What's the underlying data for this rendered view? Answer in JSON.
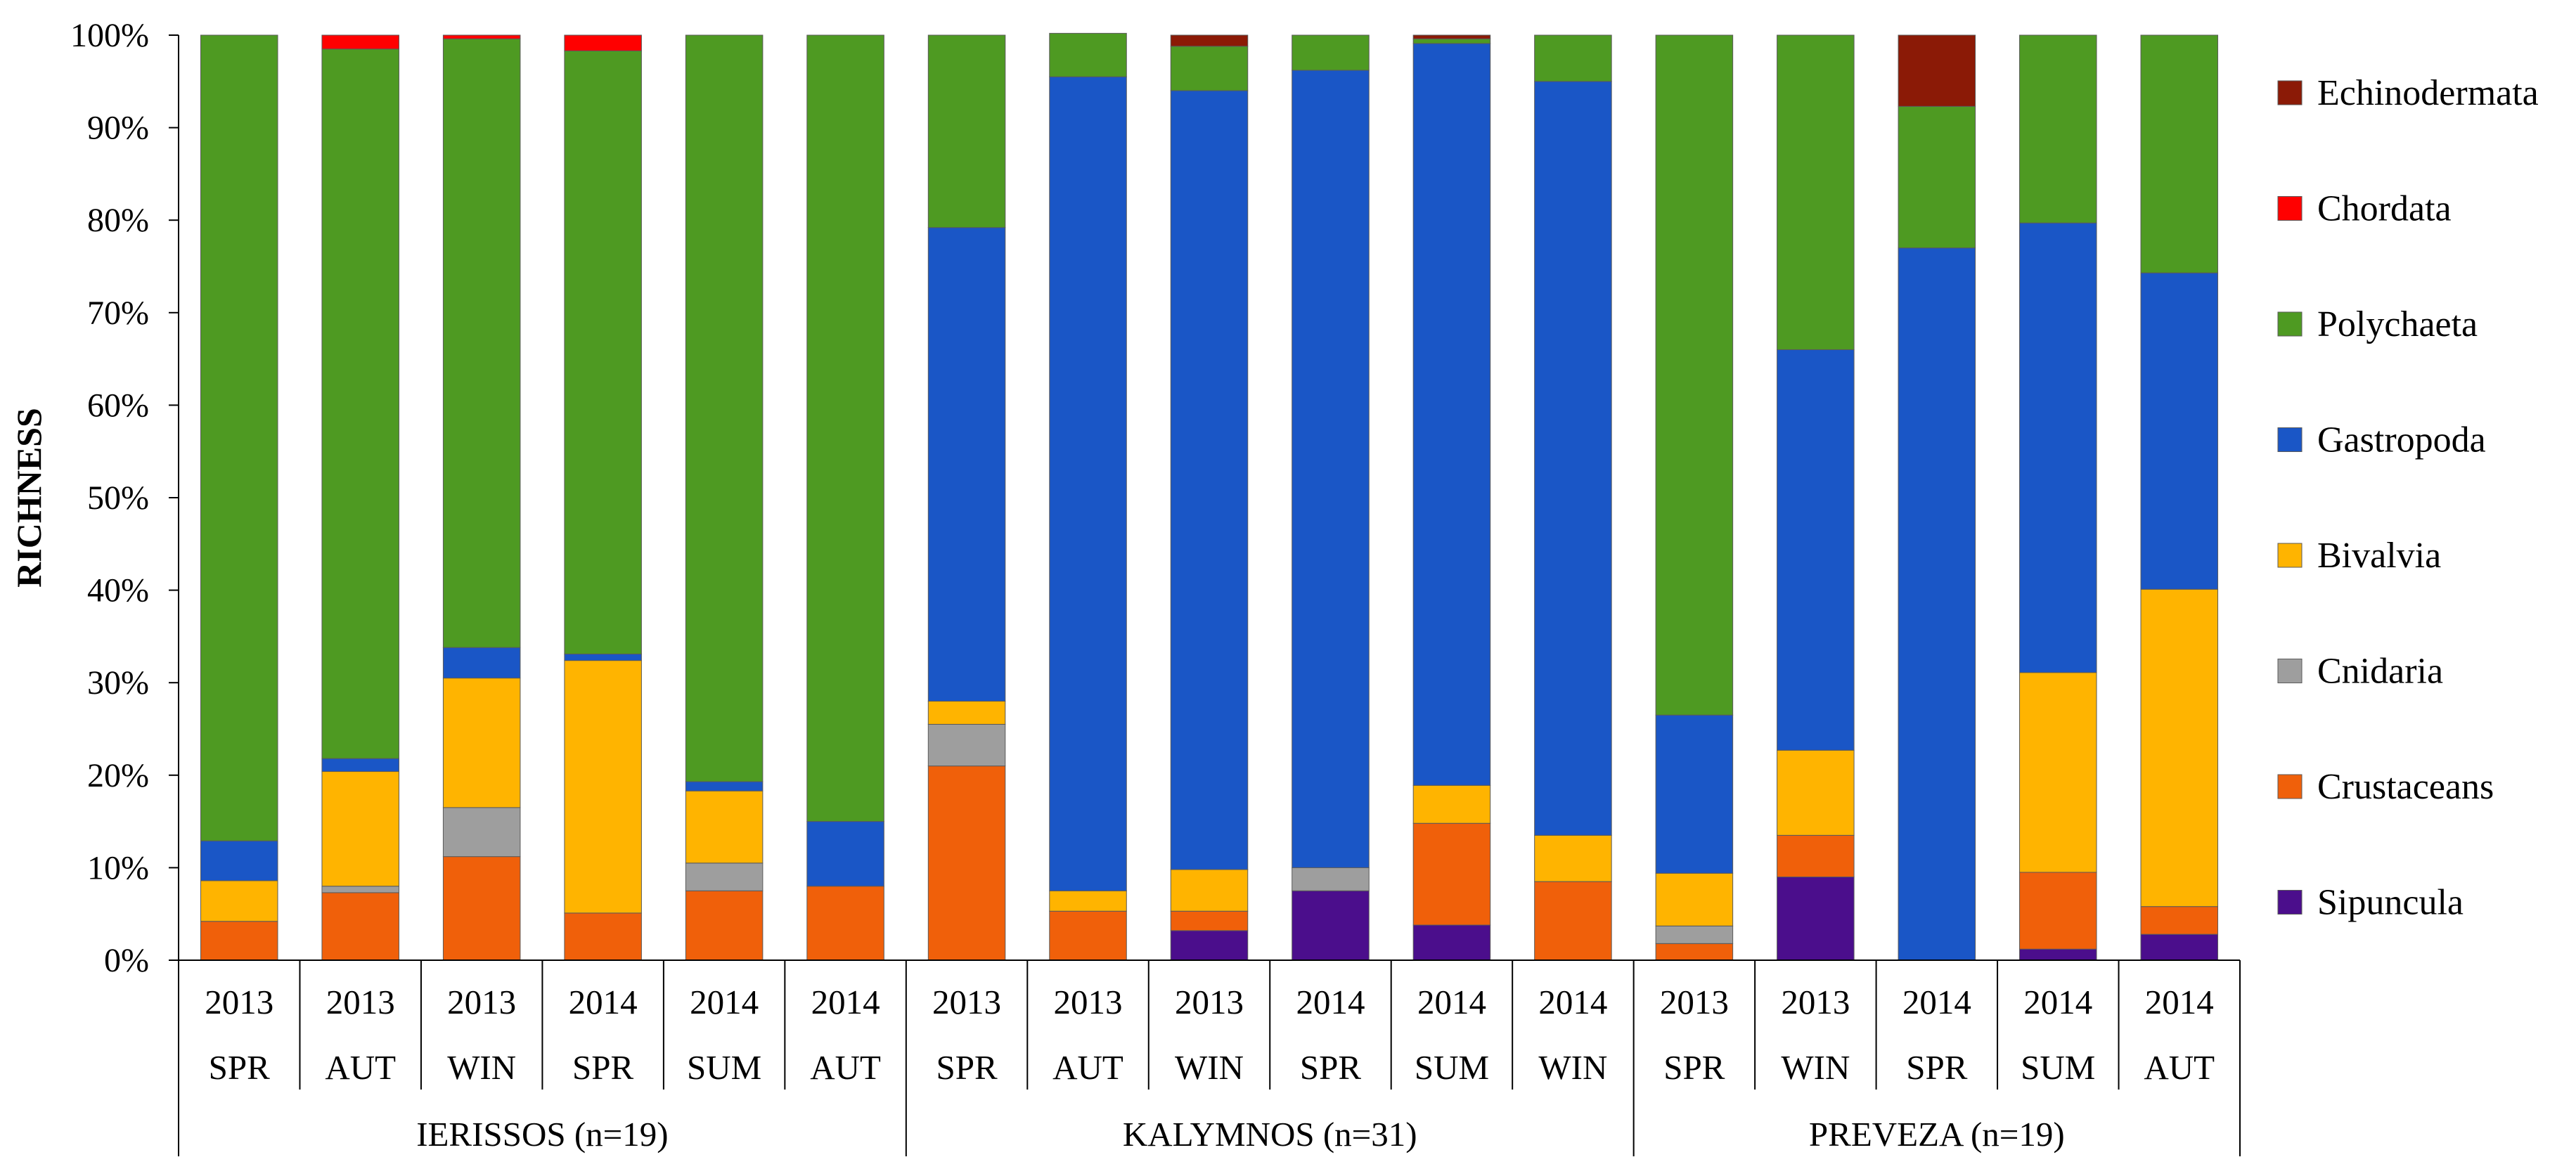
{
  "chart_data": {
    "type": "bar",
    "stacked": true,
    "percent": true,
    "title": "",
    "ylabel": "RICHNESS",
    "xlabel": "",
    "ylim": [
      0,
      100
    ],
    "yticks": [
      "0%",
      "10%",
      "20%",
      "30%",
      "40%",
      "50%",
      "60%",
      "70%",
      "80%",
      "90%",
      "100%"
    ],
    "grid": false,
    "legend_position": "right",
    "categories": [
      {
        "year": "2013",
        "season": "SPR"
      },
      {
        "year": "2013",
        "season": "AUT"
      },
      {
        "year": "2013",
        "season": "WIN"
      },
      {
        "year": "2014",
        "season": "SPR"
      },
      {
        "year": "2014",
        "season": "SUM"
      },
      {
        "year": "2014",
        "season": "AUT"
      },
      {
        "year": "2013",
        "season": "SPR"
      },
      {
        "year": "2013",
        "season": "AUT"
      },
      {
        "year": "2013",
        "season": "WIN"
      },
      {
        "year": "2014",
        "season": "SPR"
      },
      {
        "year": "2014",
        "season": "SUM"
      },
      {
        "year": "2014",
        "season": "WIN"
      },
      {
        "year": "2013",
        "season": "SPR"
      },
      {
        "year": "2013",
        "season": "WIN"
      },
      {
        "year": "2014",
        "season": "SPR"
      },
      {
        "year": "2014",
        "season": "SUM"
      },
      {
        "year": "2014",
        "season": "AUT"
      }
    ],
    "groups": [
      {
        "label": "IERISSOS (n=19)",
        "count": 6
      },
      {
        "label": "KALYMNOS (n=31)",
        "count": 6
      },
      {
        "label": "PREVEZA (n=19)",
        "count": 5
      }
    ],
    "series": [
      {
        "name": "Sipuncula",
        "color": "#4B0E8C",
        "values": [
          0,
          0,
          0,
          0,
          0,
          0,
          0,
          0,
          3.2,
          7.5,
          3.8,
          0,
          0,
          9,
          0,
          1.2,
          2.8
        ]
      },
      {
        "name": "Crustaceans",
        "color": "#F0600A",
        "values": [
          4.2,
          7.3,
          11.2,
          5.1,
          7.5,
          8.0,
          21,
          5.3,
          2.1,
          0,
          11,
          8.5,
          1.8,
          4.5,
          0,
          8.3,
          3.0
        ]
      },
      {
        "name": "Cnidaria",
        "color": "#9E9E9E",
        "values": [
          0,
          0.7,
          5.3,
          0,
          3.0,
          0,
          4.5,
          0,
          0,
          2.5,
          0,
          0,
          1.9,
          0,
          0,
          0,
          0
        ]
      },
      {
        "name": "Bivalvia",
        "color": "#FFB400",
        "values": [
          4.4,
          12.4,
          14,
          27.3,
          7.8,
          0,
          2.5,
          2.2,
          4.5,
          0,
          4.1,
          5.0,
          5.7,
          9.2,
          0,
          21.6,
          34.3
        ]
      },
      {
        "name": "Gastropoda",
        "color": "#1A56C6",
        "values": [
          4.3,
          1.4,
          3.3,
          0.7,
          1.0,
          7.0,
          51.2,
          88,
          84.2,
          86.2,
          80.2,
          81.5,
          17.1,
          43.3,
          77,
          48.6,
          34.2
        ]
      },
      {
        "name": "Polychaeta",
        "color": "#4E9A22",
        "values": [
          87.1,
          76.7,
          65.8,
          65.2,
          80.7,
          85.0,
          20.8,
          4.7,
          4.8,
          3.8,
          0.5,
          5.0,
          73.5,
          34.0,
          15.3,
          20.3,
          25.7
        ]
      },
      {
        "name": "Chordata",
        "color": "#FF0000",
        "values": [
          0,
          1.5,
          0.4,
          1.7,
          0,
          0,
          0,
          0,
          0,
          0,
          0,
          0,
          0,
          0,
          0,
          0,
          0
        ]
      },
      {
        "name": "Echinodermata",
        "color": "#8B1A06",
        "values": [
          0,
          0,
          0,
          0,
          0,
          0,
          0,
          0,
          1.2,
          0,
          0.4,
          0,
          0,
          0,
          7.7,
          0,
          0
        ]
      }
    ],
    "legend_order": [
      "Echinodermata",
      "Chordata",
      "Polychaeta",
      "Gastropoda",
      "Bivalvia",
      "Cnidaria",
      "Crustaceans",
      "Sipuncula"
    ]
  }
}
